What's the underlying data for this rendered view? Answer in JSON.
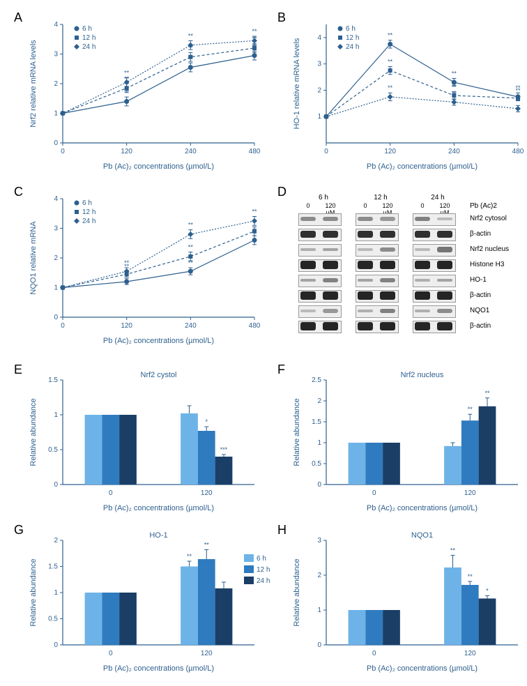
{
  "colors": {
    "navy": "#2d5f8e",
    "bar_6h": "#6db3e8",
    "bar_12h": "#2f7bbf",
    "bar_24h": "#1a3e66",
    "blot_dark": "#222",
    "blot_mid": "#888",
    "blot_light": "#bbb"
  },
  "panelA": {
    "label": "A",
    "type": "line",
    "title": "",
    "xlabel": "Pb (Ac)₂ concentrations (µmol/L)",
    "ylabel": "Nrf2 relative mRNA levels",
    "xlim": [
      0,
      480
    ],
    "ylim": [
      0,
      4
    ],
    "xticks": [
      0,
      120,
      240,
      480
    ],
    "yticks": [
      0,
      1,
      2,
      3,
      4
    ],
    "legend_title": "",
    "legend_items": [
      "6 h",
      "12 h",
      "24 h"
    ],
    "legend_markers": [
      "circle",
      "square",
      "diamond"
    ],
    "series": [
      {
        "name": "6 h",
        "marker": "circle",
        "dash": "none",
        "y": [
          1.0,
          1.4,
          2.55,
          2.95
        ],
        "err": [
          0,
          0.15,
          0.15,
          0.15
        ],
        "sig": [
          "",
          "**",
          "**",
          "**"
        ]
      },
      {
        "name": "12 h",
        "marker": "square",
        "dash": "4,3",
        "y": [
          1.0,
          1.85,
          2.9,
          3.2
        ],
        "err": [
          0,
          0.15,
          0.15,
          0.15
        ],
        "sig": [
          "",
          "**",
          "**",
          "**"
        ]
      },
      {
        "name": "24 h",
        "marker": "diamond",
        "dash": "2,2",
        "y": [
          1.0,
          2.05,
          3.3,
          3.45
        ],
        "err": [
          0,
          0.15,
          0.15,
          0.15
        ],
        "sig": [
          "",
          "**",
          "**",
          "**"
        ]
      }
    ]
  },
  "panelB": {
    "label": "B",
    "type": "line",
    "xlabel": "Pb (Ac)₂ concentrations (µmol/L)",
    "ylabel": "HO-1 relative mRNA levels",
    "xlim": [
      0,
      480
    ],
    "ylim": [
      0,
      4.5
    ],
    "xticks": [
      0,
      120,
      240,
      480
    ],
    "yticks": [
      1,
      2,
      3,
      4
    ],
    "legend_items": [
      "6 h",
      "12 h",
      "24 h"
    ],
    "legend_markers": [
      "circle",
      "square",
      "diamond"
    ],
    "series": [
      {
        "name": "6 h",
        "marker": "circle",
        "dash": "none",
        "y": [
          1.0,
          3.75,
          2.3,
          1.75
        ],
        "err": [
          0,
          0.15,
          0.15,
          0.15
        ],
        "sig": [
          "",
          "**",
          "**",
          "**"
        ]
      },
      {
        "name": "12 h",
        "marker": "square",
        "dash": "4,3",
        "y": [
          1.0,
          2.75,
          1.8,
          1.7
        ],
        "err": [
          0,
          0.15,
          0.15,
          0.1
        ],
        "sig": [
          "",
          "**",
          "**",
          "**"
        ]
      },
      {
        "name": "24 h",
        "marker": "diamond",
        "dash": "2,2",
        "y": [
          1.0,
          1.75,
          1.55,
          1.3
        ],
        "err": [
          0,
          0.15,
          0.12,
          0.12
        ],
        "sig": [
          "",
          "**",
          "**",
          "**"
        ]
      }
    ]
  },
  "panelC": {
    "label": "C",
    "type": "line",
    "xlabel": "Pb (Ac)₂ concentrations (µmol/L)",
    "ylabel": "NQO1 relative mRNA",
    "xlim": [
      0,
      480
    ],
    "ylim": [
      0,
      4
    ],
    "xticks": [
      0,
      120,
      240,
      480
    ],
    "yticks": [
      0,
      1,
      2,
      3,
      4
    ],
    "legend_items": [
      "6 h",
      "12 h",
      "24 h"
    ],
    "legend_markers": [
      "circle",
      "square",
      "diamond"
    ],
    "series": [
      {
        "name": "6 h",
        "marker": "circle",
        "dash": "none",
        "y": [
          1.0,
          1.2,
          1.55,
          2.6
        ],
        "err": [
          0,
          0.1,
          0.12,
          0.15
        ],
        "sig": [
          "",
          "**",
          "**",
          "**"
        ]
      },
      {
        "name": "12 h",
        "marker": "square",
        "dash": "4,3",
        "y": [
          1.0,
          1.45,
          2.05,
          2.9
        ],
        "err": [
          0,
          0.1,
          0.15,
          0.15
        ],
        "sig": [
          "",
          "**",
          "**",
          "**"
        ]
      },
      {
        "name": "24 h",
        "marker": "diamond",
        "dash": "2,2",
        "y": [
          1.0,
          1.55,
          2.8,
          3.25
        ],
        "err": [
          0,
          0.12,
          0.15,
          0.15
        ],
        "sig": [
          "",
          "**",
          "**",
          "**"
        ]
      }
    ]
  },
  "panelD": {
    "label": "D",
    "type": "western-blot",
    "header_groups": [
      "6 h",
      "12 h",
      "24 h"
    ],
    "header_cols": [
      "0",
      "120 µM",
      "0",
      "120 µM",
      "0",
      "120 µM"
    ],
    "header_right": "Pb (Ac)2",
    "rows": [
      {
        "label": "Nrf2 cytosol",
        "intensities": [
          [
            0.5,
            0.5
          ],
          [
            0.5,
            0.45
          ],
          [
            0.55,
            0.3
          ]
        ]
      },
      {
        "label": "β-actin",
        "intensities": [
          [
            0.9,
            0.9
          ],
          [
            0.9,
            0.9
          ],
          [
            0.9,
            0.9
          ]
        ]
      },
      {
        "label": "Nrf2 nucleus",
        "intensities": [
          [
            0.35,
            0.4
          ],
          [
            0.3,
            0.5
          ],
          [
            0.3,
            0.6
          ]
        ]
      },
      {
        "label": "Histone H3",
        "intensities": [
          [
            0.95,
            0.95
          ],
          [
            0.95,
            0.95
          ],
          [
            0.95,
            0.95
          ]
        ]
      },
      {
        "label": "HO-1",
        "intensities": [
          [
            0.4,
            0.55
          ],
          [
            0.4,
            0.55
          ],
          [
            0.35,
            0.4
          ]
        ]
      },
      {
        "label": "β-actin",
        "intensities": [
          [
            0.95,
            0.95
          ],
          [
            0.95,
            0.95
          ],
          [
            0.95,
            0.95
          ]
        ]
      },
      {
        "label": "NQO1",
        "intensities": [
          [
            0.3,
            0.45
          ],
          [
            0.35,
            0.55
          ],
          [
            0.35,
            0.5
          ]
        ]
      },
      {
        "label": "β-actin",
        "intensities": [
          [
            0.95,
            0.95
          ],
          [
            0.95,
            0.95
          ],
          [
            0.95,
            0.95
          ]
        ]
      }
    ]
  },
  "bar_legend": {
    "items": [
      "6 h",
      "12 h",
      "24 h"
    ],
    "colors": [
      "#6db3e8",
      "#2f7bbf",
      "#1a3e66"
    ]
  },
  "panelE": {
    "label": "E",
    "title": "Nrf2 cystol",
    "xlabel": "Pb (Ac)₂ concentrations (µmol/L)",
    "ylabel": "Relative abundance",
    "yticks": [
      0,
      0.5,
      1.0,
      1.5
    ],
    "ylim": [
      0,
      1.5
    ],
    "xgroups": [
      "0",
      "120"
    ],
    "bars": [
      {
        "x": "0",
        "series": "6 h",
        "val": 1.0,
        "err": 0,
        "sig": ""
      },
      {
        "x": "0",
        "series": "12 h",
        "val": 1.0,
        "err": 0,
        "sig": ""
      },
      {
        "x": "0",
        "series": "24 h",
        "val": 1.0,
        "err": 0,
        "sig": ""
      },
      {
        "x": "120",
        "series": "6 h",
        "val": 1.02,
        "err": 0.11,
        "sig": ""
      },
      {
        "x": "120",
        "series": "12 h",
        "val": 0.77,
        "err": 0.06,
        "sig": "*"
      },
      {
        "x": "120",
        "series": "24 h",
        "val": 0.4,
        "err": 0.03,
        "sig": "***"
      }
    ]
  },
  "panelF": {
    "label": "F",
    "title": "Nrf2 nucleus",
    "xlabel": "Pb (Ac)₂ concentrations (µmol/L)",
    "ylabel": "Relative abundance",
    "yticks": [
      0,
      0.5,
      1.0,
      1.5,
      2.0,
      2.5
    ],
    "ylim": [
      0,
      2.5
    ],
    "xgroups": [
      "0",
      "120"
    ],
    "bars": [
      {
        "x": "0",
        "series": "6 h",
        "val": 1.0,
        "err": 0,
        "sig": ""
      },
      {
        "x": "0",
        "series": "12 h",
        "val": 1.0,
        "err": 0,
        "sig": ""
      },
      {
        "x": "0",
        "series": "24 h",
        "val": 1.0,
        "err": 0,
        "sig": ""
      },
      {
        "x": "120",
        "series": "6 h",
        "val": 0.92,
        "err": 0.08,
        "sig": ""
      },
      {
        "x": "120",
        "series": "12 h",
        "val": 1.53,
        "err": 0.15,
        "sig": "**"
      },
      {
        "x": "120",
        "series": "24 h",
        "val": 1.87,
        "err": 0.2,
        "sig": "**"
      }
    ]
  },
  "panelG": {
    "label": "G",
    "title": "HO-1",
    "xlabel": "Pb (Ac)₂ concentrations (µmol/L)",
    "ylabel": "Relative abundance",
    "yticks": [
      0,
      0.5,
      1.0,
      1.5,
      2.0
    ],
    "ylim": [
      0,
      2.0
    ],
    "xgroups": [
      "0",
      "120"
    ],
    "bars": [
      {
        "x": "0",
        "series": "6 h",
        "val": 1.0,
        "err": 0,
        "sig": ""
      },
      {
        "x": "0",
        "series": "12 h",
        "val": 1.0,
        "err": 0,
        "sig": ""
      },
      {
        "x": "0",
        "series": "24 h",
        "val": 1.0,
        "err": 0,
        "sig": ""
      },
      {
        "x": "120",
        "series": "6 h",
        "val": 1.5,
        "err": 0.1,
        "sig": "**"
      },
      {
        "x": "120",
        "series": "12 h",
        "val": 1.64,
        "err": 0.18,
        "sig": "**"
      },
      {
        "x": "120",
        "series": "24 h",
        "val": 1.08,
        "err": 0.12,
        "sig": ""
      }
    ]
  },
  "panelH": {
    "label": "H",
    "title": "NQO1",
    "xlabel": "Pb (Ac)₂ concentrations (µmol/L)",
    "ylabel": "Relative abundance",
    "yticks": [
      0,
      1,
      2,
      3
    ],
    "ylim": [
      0,
      3
    ],
    "xgroups": [
      "0",
      "120"
    ],
    "bars": [
      {
        "x": "0",
        "series": "6 h",
        "val": 1.0,
        "err": 0,
        "sig": ""
      },
      {
        "x": "0",
        "series": "12 h",
        "val": 1.0,
        "err": 0,
        "sig": ""
      },
      {
        "x": "0",
        "series": "24 h",
        "val": 1.0,
        "err": 0,
        "sig": ""
      },
      {
        "x": "120",
        "series": "6 h",
        "val": 2.22,
        "err": 0.35,
        "sig": "**"
      },
      {
        "x": "120",
        "series": "12 h",
        "val": 1.72,
        "err": 0.1,
        "sig": "**"
      },
      {
        "x": "120",
        "series": "24 h",
        "val": 1.33,
        "err": 0.08,
        "sig": "*"
      }
    ]
  }
}
